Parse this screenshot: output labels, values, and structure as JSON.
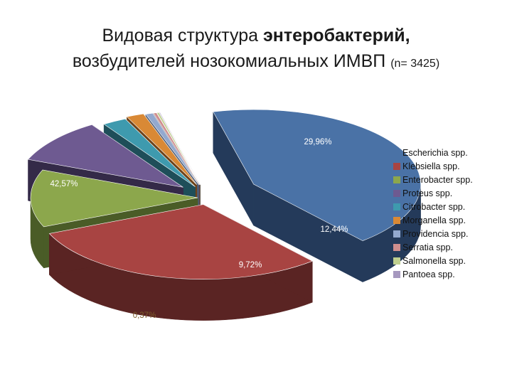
{
  "title": {
    "line1_plain": "Видовая структура ",
    "line1_bold": "энтеробактерий,",
    "line2": "возбудителей нозокомиальных  ИМВП ",
    "line2_small": "(n= 3425)"
  },
  "chart_data": {
    "type": "pie",
    "style": "3d-exploded",
    "legend_position": "right",
    "series": [
      {
        "name": "Escherichia spp.",
        "value": 42.57,
        "label": "42,57%",
        "color": "#4A72A6",
        "side": "#243A5A"
      },
      {
        "name": "Klebsiella spp.",
        "value": 29.96,
        "label": "29,96%",
        "color": "#A84442",
        "side": "#5A2423"
      },
      {
        "name": "Enterobacter spp.",
        "value": 12.44,
        "label": "12,44%",
        "color": "#8CA74C",
        "side": "#4A5C27"
      },
      {
        "name": "Proteus spp.",
        "value": 9.72,
        "label": "9,72%",
        "color": "#6E5A91",
        "side": "#342A48"
      },
      {
        "name": "Citrobacter spp.",
        "value": 2.33,
        "label": "",
        "color": "#3E9AAE",
        "side": "#1E4E59"
      },
      {
        "name": "Morganella spp.",
        "value": 1.7,
        "label": "",
        "color": "#D98935",
        "side": "#6E431A"
      },
      {
        "name": "Providencia spp.",
        "value": 0.7,
        "label": "",
        "color": "#93A9CF",
        "side": "#4E5D77"
      },
      {
        "name": "Serratia spp.",
        "value": 0.3,
        "label": "",
        "color": "#CF8E8E",
        "side": "#6E4646"
      },
      {
        "name": "Salmonella spp.",
        "value": 0.2,
        "label": "",
        "color": "#BFCF8E",
        "side": "#656E46"
      },
      {
        "name": "Pantoea spp.",
        "value": 0.08,
        "label": "",
        "color": "#A698BF",
        "side": "#54496A"
      }
    ],
    "overlapping_small_labels": "0,37%"
  }
}
